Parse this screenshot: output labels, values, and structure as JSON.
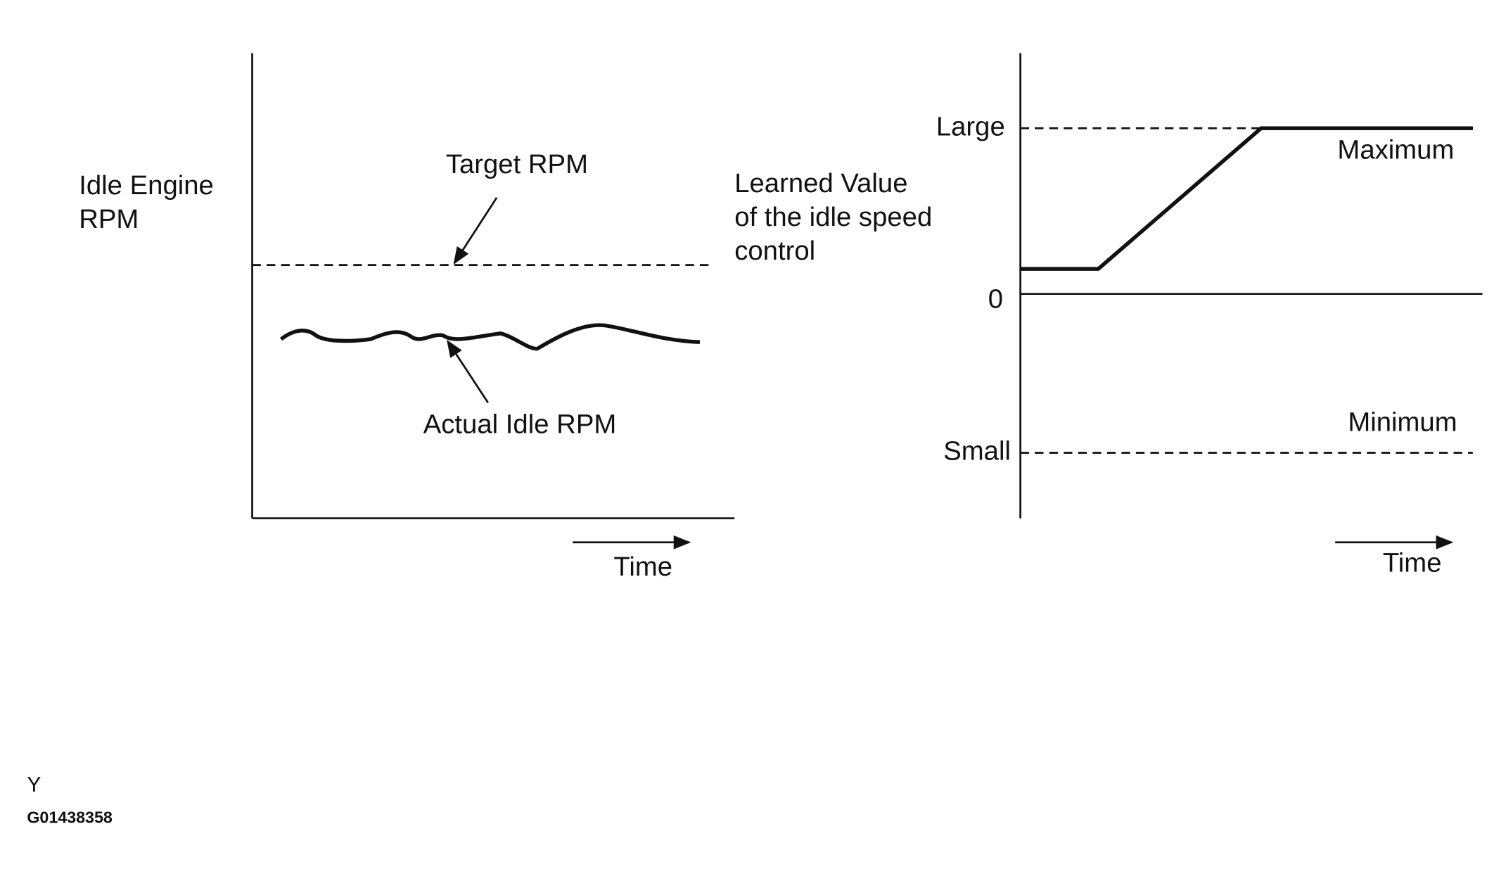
{
  "left_panel": {
    "y_label": [
      "Idle Engine",
      "RPM"
    ],
    "target_label": "Target RPM",
    "actual_label": "Actual Idle RPM",
    "x_label": "Time"
  },
  "right_panel": {
    "y_label": [
      "Learned Value",
      "of the idle speed",
      "control"
    ],
    "levels": [
      "Large",
      "0",
      "Small"
    ],
    "max_label": "Maximum",
    "min_label": "Minimum",
    "x_label": "Time"
  },
  "footer": {
    "code_letter": "Y",
    "figure_id": "G01438358"
  }
}
